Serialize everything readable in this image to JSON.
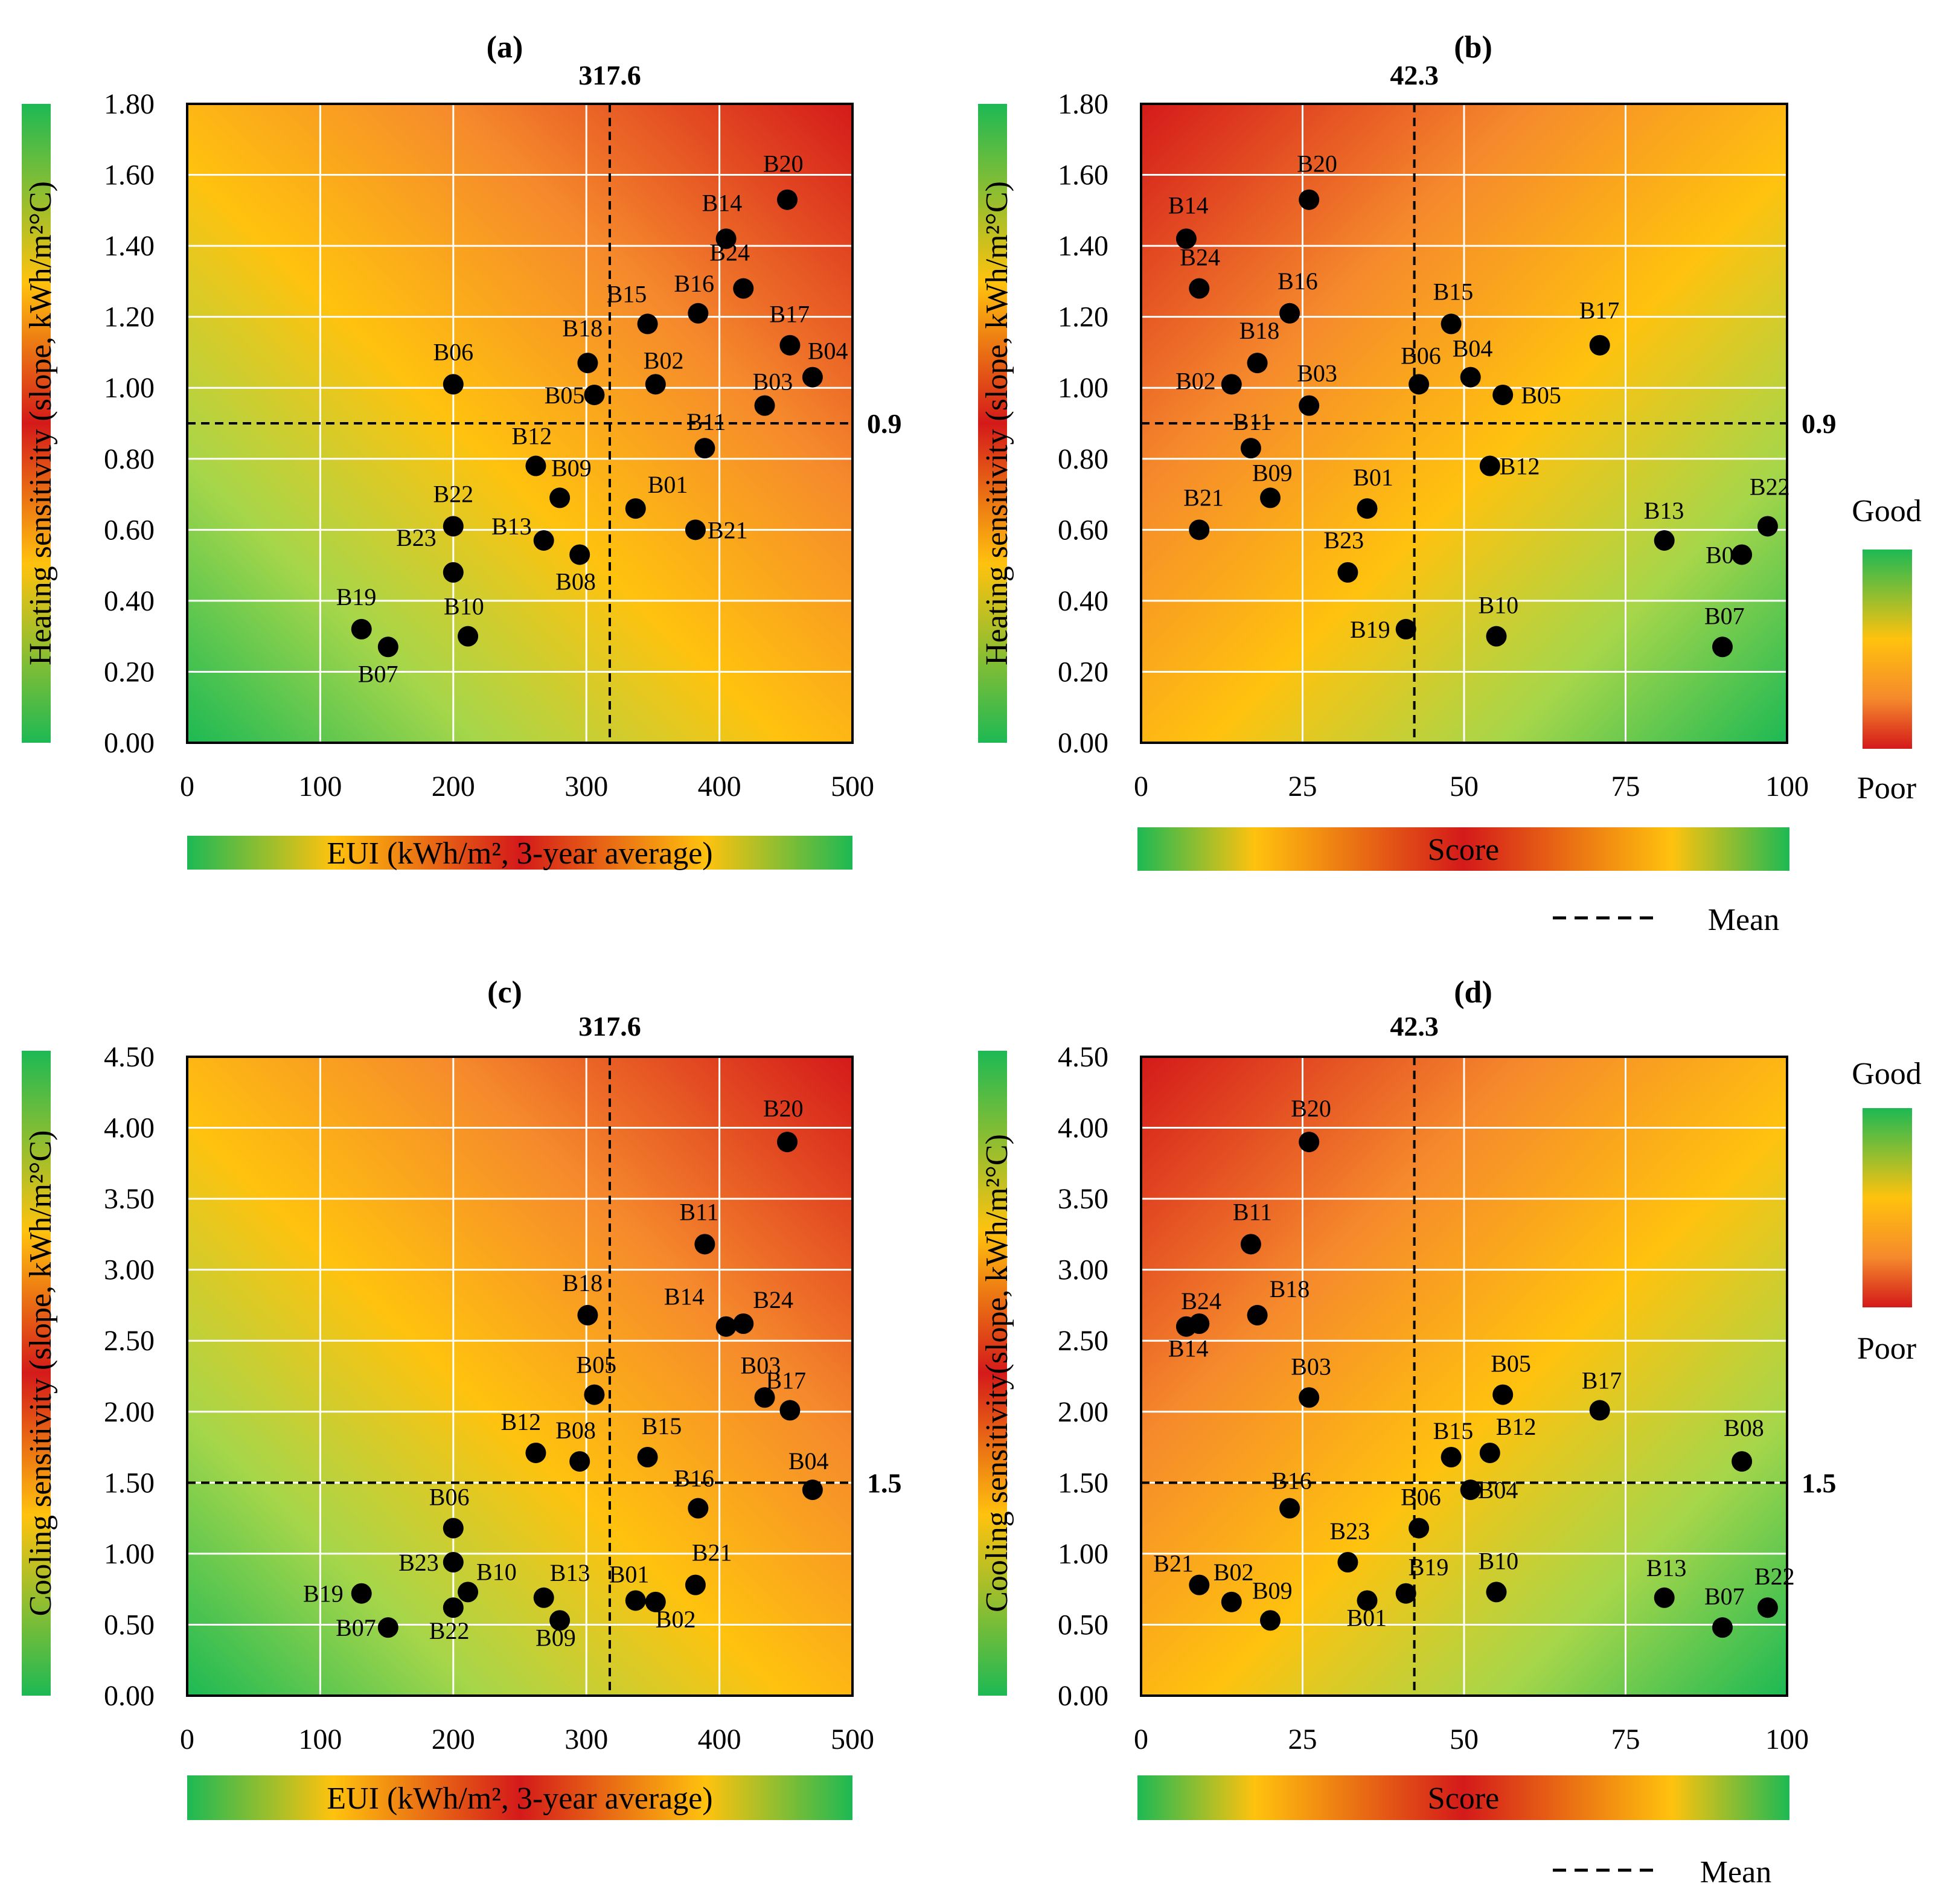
{
  "colors": {
    "good": "#1db954",
    "mid_yellow": "#ffc20e",
    "mid_orange": "#f5892c",
    "poor": "#d41a1a",
    "point": "#000000",
    "grid": "#ffffff"
  },
  "legend": {
    "good_label": "Good",
    "poor_label": "Poor",
    "mean_label": "Mean"
  },
  "chart_data": [
    {
      "type": "scatter",
      "panel": "(a)",
      "xlabel": "EUI (kWh/m², 3-year average)",
      "ylabel": "Heating sensitivity (slope, kWh/m²°C)",
      "xlim": [
        0,
        500
      ],
      "ylim": [
        0,
        1.8
      ],
      "xticks": [
        "0",
        "100",
        "200",
        "300",
        "400",
        "500"
      ],
      "yticks": [
        "0.00",
        "0.20",
        "0.40",
        "0.60",
        "0.80",
        "1.00",
        "1.20",
        "1.40",
        "1.60",
        "1.80"
      ],
      "x_mean": 317.6,
      "y_mean": 0.9,
      "x_mean_label": "317.6",
      "y_mean_label": "0.9",
      "gradient": "heat-high-right",
      "grid": true,
      "points": [
        {
          "label": "B01",
          "x": 337,
          "y": 0.66
        },
        {
          "label": "B02",
          "x": 352,
          "y": 1.01
        },
        {
          "label": "B03",
          "x": 434,
          "y": 0.95
        },
        {
          "label": "B04",
          "x": 470,
          "y": 1.03
        },
        {
          "label": "B05",
          "x": 306,
          "y": 0.98
        },
        {
          "label": "B06",
          "x": 200,
          "y": 1.01
        },
        {
          "label": "B07",
          "x": 151,
          "y": 0.27
        },
        {
          "label": "B08",
          "x": 295,
          "y": 0.53
        },
        {
          "label": "B09",
          "x": 280,
          "y": 0.69
        },
        {
          "label": "B10",
          "x": 211,
          "y": 0.3
        },
        {
          "label": "B11",
          "x": 389,
          "y": 0.83
        },
        {
          "label": "B12",
          "x": 262,
          "y": 0.78
        },
        {
          "label": "B13",
          "x": 268,
          "y": 0.57
        },
        {
          "label": "B14",
          "x": 405,
          "y": 1.42
        },
        {
          "label": "B15",
          "x": 346,
          "y": 1.18
        },
        {
          "label": "B16",
          "x": 384,
          "y": 1.21
        },
        {
          "label": "B17",
          "x": 453,
          "y": 1.12
        },
        {
          "label": "B18",
          "x": 301,
          "y": 1.07
        },
        {
          "label": "B19",
          "x": 131,
          "y": 0.32
        },
        {
          "label": "B20",
          "x": 451,
          "y": 1.53
        },
        {
          "label": "B21",
          "x": 382,
          "y": 0.6
        },
        {
          "label": "B22",
          "x": 200,
          "y": 0.61
        },
        {
          "label": "B23",
          "x": 200,
          "y": 0.48
        },
        {
          "label": "B24",
          "x": 418,
          "y": 1.28
        }
      ]
    },
    {
      "type": "scatter",
      "panel": "(b)",
      "xlabel": "Score",
      "ylabel": "Heating sensitivity (slope, kWh/m²°C)",
      "xlim": [
        0,
        100
      ],
      "ylim": [
        0,
        1.8
      ],
      "xticks": [
        "0",
        "25",
        "50",
        "75",
        "100"
      ],
      "yticks": [
        "0.00",
        "0.20",
        "0.40",
        "0.60",
        "0.80",
        "1.00",
        "1.20",
        "1.40",
        "1.60",
        "1.80"
      ],
      "x_mean": 42.3,
      "y_mean": 0.9,
      "x_mean_label": "42.3",
      "y_mean_label": "0.9",
      "gradient": "score-high-left",
      "grid": true,
      "points": [
        {
          "label": "B01",
          "x": 35,
          "y": 0.66
        },
        {
          "label": "B02",
          "x": 14,
          "y": 1.01
        },
        {
          "label": "B03",
          "x": 26,
          "y": 0.95
        },
        {
          "label": "B04",
          "x": 51,
          "y": 1.03
        },
        {
          "label": "B05",
          "x": 56,
          "y": 0.98
        },
        {
          "label": "B06",
          "x": 43,
          "y": 1.01
        },
        {
          "label": "B07",
          "x": 90,
          "y": 0.27
        },
        {
          "label": "B08",
          "x": 93,
          "y": 0.53
        },
        {
          "label": "B09",
          "x": 20,
          "y": 0.69
        },
        {
          "label": "B10",
          "x": 55,
          "y": 0.3
        },
        {
          "label": "B11",
          "x": 17,
          "y": 0.83
        },
        {
          "label": "B12",
          "x": 54,
          "y": 0.78
        },
        {
          "label": "B13",
          "x": 81,
          "y": 0.57
        },
        {
          "label": "B14",
          "x": 7,
          "y": 1.42
        },
        {
          "label": "B15",
          "x": 48,
          "y": 1.18
        },
        {
          "label": "B16",
          "x": 23,
          "y": 1.21
        },
        {
          "label": "B17",
          "x": 71,
          "y": 1.12
        },
        {
          "label": "B18",
          "x": 18,
          "y": 1.07
        },
        {
          "label": "B19",
          "x": 41,
          "y": 0.32
        },
        {
          "label": "B20",
          "x": 26,
          "y": 1.53
        },
        {
          "label": "B21",
          "x": 9,
          "y": 0.6
        },
        {
          "label": "B22",
          "x": 97,
          "y": 0.61
        },
        {
          "label": "B23",
          "x": 32,
          "y": 0.48
        },
        {
          "label": "B24",
          "x": 9,
          "y": 1.28
        }
      ]
    },
    {
      "type": "scatter",
      "panel": "(c)",
      "xlabel": "EUI (kWh/m², 3-year average)",
      "ylabel": "Cooling sensitivity (slope, kWh/m²°C)",
      "xlim": [
        0,
        500
      ],
      "ylim": [
        0,
        4.5
      ],
      "xticks": [
        "0",
        "100",
        "200",
        "300",
        "400",
        "500"
      ],
      "yticks": [
        "0.00",
        "0.50",
        "1.00",
        "1.50",
        "2.00",
        "2.50",
        "3.00",
        "3.50",
        "4.00",
        "4.50"
      ],
      "x_mean": 317.6,
      "y_mean": 1.5,
      "x_mean_label": "317.6",
      "y_mean_label": "1.5",
      "gradient": "heat-high-right",
      "grid": true,
      "points": [
        {
          "label": "B01",
          "x": 337,
          "y": 0.67
        },
        {
          "label": "B02",
          "x": 352,
          "y": 0.66
        },
        {
          "label": "B03",
          "x": 434,
          "y": 2.1
        },
        {
          "label": "B04",
          "x": 470,
          "y": 1.45
        },
        {
          "label": "B05",
          "x": 306,
          "y": 2.12
        },
        {
          "label": "B06",
          "x": 200,
          "y": 1.18
        },
        {
          "label": "B07",
          "x": 151,
          "y": 0.48
        },
        {
          "label": "B08",
          "x": 295,
          "y": 1.65
        },
        {
          "label": "B09",
          "x": 280,
          "y": 0.53
        },
        {
          "label": "B10",
          "x": 211,
          "y": 0.73
        },
        {
          "label": "B11",
          "x": 389,
          "y": 3.18
        },
        {
          "label": "B12",
          "x": 262,
          "y": 1.71
        },
        {
          "label": "B13",
          "x": 268,
          "y": 0.69
        },
        {
          "label": "B14",
          "x": 405,
          "y": 2.6
        },
        {
          "label": "B15",
          "x": 346,
          "y": 1.68
        },
        {
          "label": "B16",
          "x": 384,
          "y": 1.32
        },
        {
          "label": "B17",
          "x": 453,
          "y": 2.01
        },
        {
          "label": "B18",
          "x": 301,
          "y": 2.68
        },
        {
          "label": "B19",
          "x": 131,
          "y": 0.72
        },
        {
          "label": "B20",
          "x": 451,
          "y": 3.9
        },
        {
          "label": "B21",
          "x": 382,
          "y": 0.78
        },
        {
          "label": "B22",
          "x": 200,
          "y": 0.62
        },
        {
          "label": "B23",
          "x": 200,
          "y": 0.94
        },
        {
          "label": "B24",
          "x": 418,
          "y": 2.62
        }
      ]
    },
    {
      "type": "scatter",
      "panel": "(d)",
      "xlabel": "Score",
      "ylabel": "Cooling sensitivity(slope, kWh/m²°C)",
      "xlim": [
        0,
        100
      ],
      "ylim": [
        0,
        4.5
      ],
      "xticks": [
        "0",
        "25",
        "50",
        "75",
        "100"
      ],
      "yticks": [
        "0.00",
        "0.50",
        "1.00",
        "1.50",
        "2.00",
        "2.50",
        "3.00",
        "3.50",
        "4.00",
        "4.50"
      ],
      "x_mean": 42.3,
      "y_mean": 1.5,
      "x_mean_label": "42.3",
      "y_mean_label": "1.5",
      "gradient": "score-high-left",
      "grid": true,
      "points": [
        {
          "label": "B01",
          "x": 35,
          "y": 0.67
        },
        {
          "label": "B02",
          "x": 14,
          "y": 0.66
        },
        {
          "label": "B03",
          "x": 26,
          "y": 2.1
        },
        {
          "label": "B04",
          "x": 51,
          "y": 1.45
        },
        {
          "label": "B05",
          "x": 56,
          "y": 2.12
        },
        {
          "label": "B06",
          "x": 43,
          "y": 1.18
        },
        {
          "label": "B07",
          "x": 90,
          "y": 0.48
        },
        {
          "label": "B08",
          "x": 93,
          "y": 1.65
        },
        {
          "label": "B09",
          "x": 20,
          "y": 0.53
        },
        {
          "label": "B10",
          "x": 55,
          "y": 0.73
        },
        {
          "label": "B11",
          "x": 17,
          "y": 3.18
        },
        {
          "label": "B12",
          "x": 54,
          "y": 1.71
        },
        {
          "label": "B13",
          "x": 81,
          "y": 0.69
        },
        {
          "label": "B14",
          "x": 7,
          "y": 2.6
        },
        {
          "label": "B15",
          "x": 48,
          "y": 1.68
        },
        {
          "label": "B16",
          "x": 23,
          "y": 1.32
        },
        {
          "label": "B17",
          "x": 71,
          "y": 2.01
        },
        {
          "label": "B18",
          "x": 18,
          "y": 2.68
        },
        {
          "label": "B19",
          "x": 41,
          "y": 0.72
        },
        {
          "label": "B20",
          "x": 26,
          "y": 3.9
        },
        {
          "label": "B21",
          "x": 9,
          "y": 0.78
        },
        {
          "label": "B22",
          "x": 97,
          "y": 0.62
        },
        {
          "label": "B23",
          "x": 32,
          "y": 0.94
        },
        {
          "label": "B24",
          "x": 9,
          "y": 2.62
        }
      ]
    }
  ]
}
